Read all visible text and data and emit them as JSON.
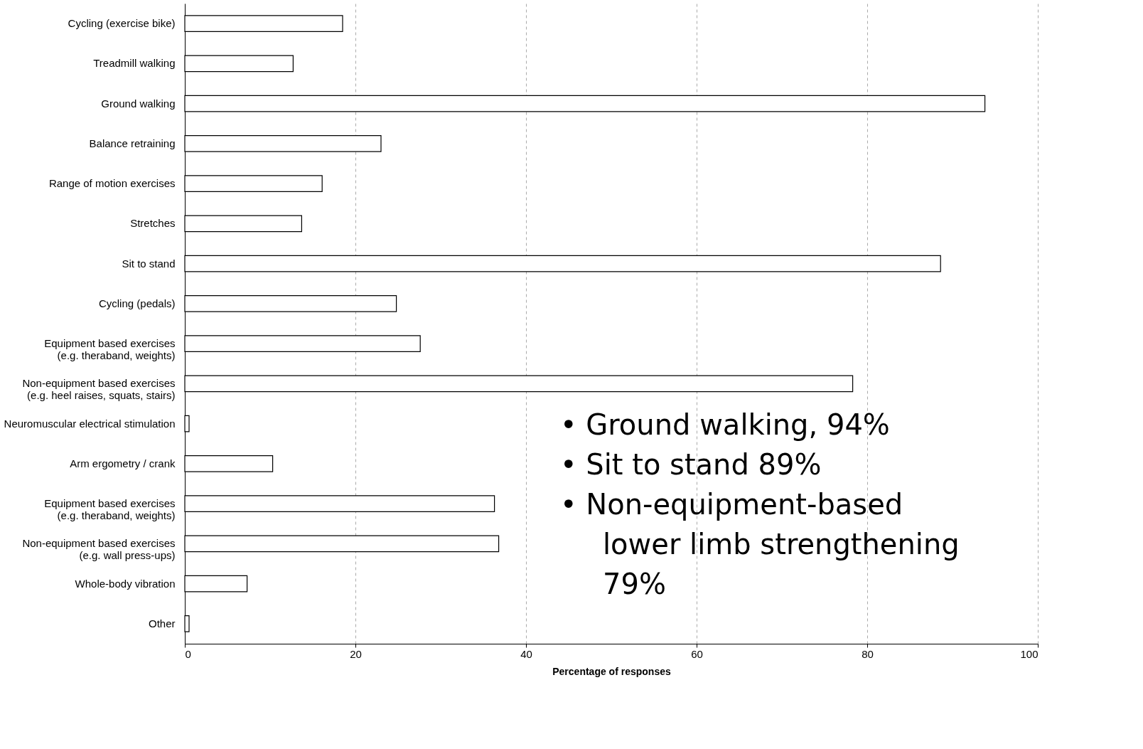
{
  "chart_data": {
    "type": "bar",
    "orientation": "horizontal",
    "xlabel": "Percentage of responses",
    "categories": [
      "Cycling (exercise bike)",
      "Treadmill walking",
      "Ground walking",
      "Balance retraining",
      "Range of motion exercises",
      "Stretches",
      "Sit to stand",
      "Cycling (pedals)",
      "Equipment based exercises\n(e.g. theraband, weights)",
      "Non-equipment based exercises\n(e.g. heel raises, squats, stairs)",
      "Neuromuscular electrical stimulation",
      "Arm ergometry / crank",
      "Equipment based exercises\n(e.g. theraband, weights)",
      "Non-equipment based exercises\n(e.g. wall press-ups)",
      "Whole-body vibration",
      "Other"
    ],
    "values": [
      18.5,
      12.7,
      93.8,
      23.0,
      16.1,
      13.7,
      88.6,
      24.8,
      27.6,
      78.3,
      0.5,
      10.3,
      36.3,
      36.8,
      7.3,
      0.5
    ],
    "color": "#ffffff",
    "xlim": [
      0,
      100
    ],
    "xticks": [
      0,
      20,
      40,
      60,
      80,
      100
    ],
    "grid": "x",
    "annotations": [
      "• Ground walking, 94%",
      "• Sit to stand 89%",
      "• Non-equipment-based lower limb strengthening 79%"
    ]
  }
}
